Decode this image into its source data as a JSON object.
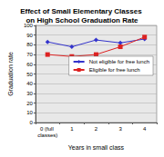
{
  "chart_data": {
    "type": "line",
    "title": "Effect of Small Elementary Classes on High School Graduation Rate",
    "x_label": "Years in small class",
    "y_label": "Graduation rate",
    "categories": [
      "0 (full classes)",
      "1",
      "2",
      "3",
      "4"
    ],
    "series": [
      {
        "name": "Not eligible for free lunch",
        "color": "#3333cc",
        "marker": "diamond",
        "values": [
          83,
          78,
          85,
          82,
          86
        ]
      },
      {
        "name": "Eligible for free lunch",
        "color": "#dd2222",
        "marker": "square",
        "values": [
          70,
          68,
          70,
          78,
          88
        ]
      }
    ],
    "ylim": [
      0,
      100
    ],
    "yticks": [
      0,
      10,
      20,
      30,
      40,
      50,
      60,
      70,
      80,
      90,
      100
    ],
    "grid": true,
    "legend": "right"
  }
}
